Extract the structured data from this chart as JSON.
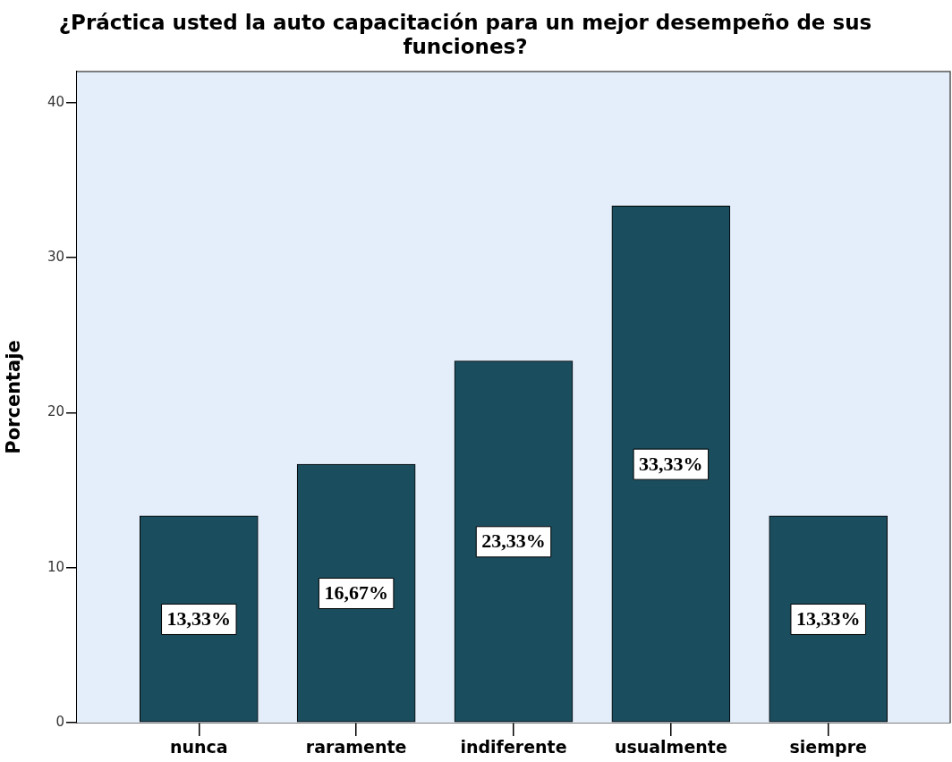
{
  "chart_data": {
    "type": "bar",
    "title": "¿Práctica usted la auto capacitación para un mejor desempeño de sus funciones?",
    "ylabel": "Porcentaje",
    "categories": [
      "nunca",
      "raramente",
      "indiferente",
      "usualmente",
      "siempre"
    ],
    "values": [
      13.33,
      16.67,
      23.33,
      33.33,
      13.33
    ],
    "color": "#1a4d5e",
    "value_labels": [
      "13,33%",
      "16,67%",
      "23,33%",
      "33,33%",
      "13,33%"
    ],
    "ylim": [
      0,
      42
    ],
    "yticks": [
      0,
      10,
      20,
      30,
      40
    ],
    "grid": false,
    "legend": false
  }
}
